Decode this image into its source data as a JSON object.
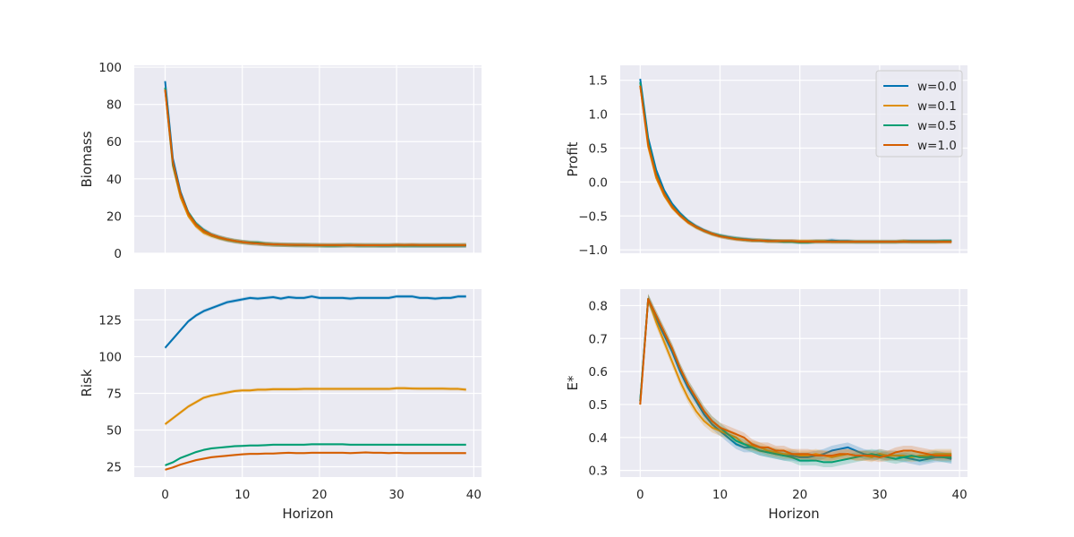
{
  "chart_data": [
    {
      "type": "line",
      "panel": "top-left",
      "xlabel": "",
      "ylabel": "Biomass",
      "xlim": [
        -4,
        41
      ],
      "ylim": [
        0,
        101
      ],
      "xticks": [
        0,
        10,
        20,
        30,
        40
      ],
      "yticks": [
        0,
        20,
        40,
        60,
        80,
        100
      ],
      "show_xtick_labels": false,
      "grid": true,
      "x": [
        0,
        1,
        2,
        3,
        4,
        5,
        6,
        7,
        8,
        9,
        10,
        11,
        12,
        13,
        14,
        15,
        16,
        17,
        18,
        19,
        20,
        21,
        22,
        23,
        24,
        25,
        26,
        27,
        28,
        29,
        30,
        31,
        32,
        33,
        34,
        35,
        36,
        37,
        38,
        39
      ],
      "series": [
        {
          "name": "w=0.0",
          "color": "#0173b2",
          "band": 1.2,
          "values": [
            92.5,
            51,
            33,
            22,
            16,
            12.5,
            10,
            8.5,
            7.3,
            6.5,
            6,
            5.5,
            5.2,
            4.9,
            4.7,
            4.6,
            4.5,
            4.4,
            4.4,
            4.3,
            4.3,
            4.2,
            4.2,
            4.2,
            4.3,
            4.2,
            4.2,
            4.2,
            4.1,
            4.1,
            4.2,
            4.2,
            4.1,
            4.1,
            4.1,
            4.1,
            4.1,
            4.1,
            4.1,
            4.1
          ]
        },
        {
          "name": "w=0.1",
          "color": "#de8f05",
          "band": 1.2,
          "values": [
            88,
            47,
            30,
            20,
            14.5,
            11,
            9.3,
            8.1,
            7.2,
            6.5,
            5.9,
            5.5,
            5.2,
            4.9,
            4.7,
            4.6,
            4.5,
            4.5,
            4.4,
            4.4,
            4.3,
            4.3,
            4.3,
            4.3,
            4.3,
            4.3,
            4.3,
            4.3,
            4.3,
            4.3,
            4.3,
            4.3,
            4.3,
            4.3,
            4.3,
            4.3,
            4.3,
            4.3,
            4.3,
            4.3
          ]
        },
        {
          "name": "w=0.5",
          "color": "#029e73",
          "band": 1.2,
          "values": [
            89,
            48,
            32,
            22,
            16,
            12.3,
            10,
            8.6,
            7.5,
            6.7,
            6.1,
            5.8,
            5.8,
            5.1,
            4.8,
            4.6,
            4.5,
            4.4,
            4.4,
            4.3,
            4.2,
            4.1,
            4.1,
            4.3,
            4.4,
            4.2,
            4.2,
            4.2,
            4.2,
            4.2,
            4.2,
            4.1,
            4.2,
            4.2,
            4.2,
            4.2,
            4.2,
            4.2,
            4.2,
            4.3
          ]
        },
        {
          "name": "w=1.0",
          "color": "#d55e00",
          "band": 1.2,
          "values": [
            88,
            49,
            32,
            21.5,
            15.5,
            12,
            10,
            8.6,
            7.5,
            6.7,
            6.1,
            5.6,
            5.3,
            5,
            4.8,
            4.7,
            4.6,
            4.5,
            4.5,
            4.4,
            4.4,
            4.4,
            4.4,
            4.4,
            4.4,
            4.4,
            4.3,
            4.3,
            4.3,
            4.3,
            4.5,
            4.4,
            4.5,
            4.4,
            4.4,
            4.4,
            4.4,
            4.4,
            4.4,
            4.4
          ]
        }
      ]
    },
    {
      "type": "line",
      "panel": "top-right",
      "xlabel": "",
      "ylabel": "Profit",
      "xlim": [
        -2.5,
        41
      ],
      "ylim": [
        -1.05,
        1.72
      ],
      "xticks": [
        0,
        10,
        20,
        30,
        40
      ],
      "yticks": [
        -1.0,
        -0.5,
        0.0,
        0.5,
        1.0,
        1.5
      ],
      "ytick_labels": [
        "−1.0",
        "−0.5",
        "0.0",
        "0.5",
        "1.0",
        "1.5"
      ],
      "show_xtick_labels": false,
      "grid": true,
      "legend": "top-right",
      "x": [
        0,
        1,
        2,
        3,
        4,
        5,
        6,
        7,
        8,
        9,
        10,
        11,
        12,
        13,
        14,
        15,
        16,
        17,
        18,
        19,
        20,
        21,
        22,
        23,
        24,
        25,
        26,
        27,
        28,
        29,
        30,
        31,
        32,
        33,
        34,
        35,
        36,
        37,
        38,
        39
      ],
      "series": [
        {
          "name": "w=0.0",
          "color": "#0173b2",
          "band": 0.03,
          "values": [
            1.52,
            0.65,
            0.18,
            -0.12,
            -0.32,
            -0.46,
            -0.57,
            -0.65,
            -0.71,
            -0.76,
            -0.79,
            -0.81,
            -0.83,
            -0.84,
            -0.85,
            -0.86,
            -0.86,
            -0.87,
            -0.87,
            -0.87,
            -0.88,
            -0.88,
            -0.87,
            -0.87,
            -0.86,
            -0.87,
            -0.87,
            -0.88,
            -0.88,
            -0.88,
            -0.88,
            -0.88,
            -0.88,
            -0.87,
            -0.87,
            -0.87,
            -0.87,
            -0.87,
            -0.87,
            -0.87
          ]
        },
        {
          "name": "w=0.1",
          "color": "#de8f05",
          "band": 0.03,
          "values": [
            1.42,
            0.52,
            0.06,
            -0.2,
            -0.38,
            -0.5,
            -0.6,
            -0.67,
            -0.72,
            -0.77,
            -0.8,
            -0.82,
            -0.84,
            -0.85,
            -0.86,
            -0.86,
            -0.87,
            -0.87,
            -0.87,
            -0.87,
            -0.87,
            -0.87,
            -0.87,
            -0.87,
            -0.88,
            -0.88,
            -0.88,
            -0.88,
            -0.88,
            -0.88,
            -0.88,
            -0.88,
            -0.88,
            -0.87,
            -0.88,
            -0.88,
            -0.88,
            -0.88,
            -0.88,
            -0.88
          ]
        },
        {
          "name": "w=0.5",
          "color": "#029e73",
          "band": 0.03,
          "values": [
            1.47,
            0.6,
            0.12,
            -0.16,
            -0.35,
            -0.48,
            -0.58,
            -0.66,
            -0.72,
            -0.76,
            -0.79,
            -0.82,
            -0.83,
            -0.85,
            -0.86,
            -0.86,
            -0.87,
            -0.87,
            -0.88,
            -0.88,
            -0.89,
            -0.89,
            -0.88,
            -0.88,
            -0.88,
            -0.88,
            -0.88,
            -0.88,
            -0.88,
            -0.88,
            -0.88,
            -0.88,
            -0.88,
            -0.88,
            -0.88,
            -0.88,
            -0.88,
            -0.88,
            -0.87,
            -0.87
          ]
        },
        {
          "name": "w=1.0",
          "color": "#d55e00",
          "band": 0.03,
          "values": [
            1.42,
            0.56,
            0.1,
            -0.17,
            -0.36,
            -0.49,
            -0.59,
            -0.66,
            -0.72,
            -0.76,
            -0.8,
            -0.82,
            -0.84,
            -0.85,
            -0.86,
            -0.86,
            -0.87,
            -0.87,
            -0.87,
            -0.87,
            -0.88,
            -0.88,
            -0.88,
            -0.88,
            -0.88,
            -0.88,
            -0.88,
            -0.88,
            -0.88,
            -0.88,
            -0.88,
            -0.88,
            -0.88,
            -0.88,
            -0.88,
            -0.88,
            -0.88,
            -0.88,
            -0.88,
            -0.88
          ]
        }
      ]
    },
    {
      "type": "line",
      "panel": "bottom-left",
      "xlabel": "Horizon",
      "ylabel": "Risk",
      "xlim": [
        -4,
        41
      ],
      "ylim": [
        18,
        146
      ],
      "xticks": [
        0,
        10,
        20,
        30,
        40
      ],
      "yticks": [
        25,
        50,
        75,
        100,
        125
      ],
      "show_xtick_labels": true,
      "grid": true,
      "x": [
        0,
        1,
        2,
        3,
        4,
        5,
        6,
        7,
        8,
        9,
        10,
        11,
        12,
        13,
        14,
        15,
        16,
        17,
        18,
        19,
        20,
        21,
        22,
        23,
        24,
        25,
        26,
        27,
        28,
        29,
        30,
        31,
        32,
        33,
        34,
        35,
        36,
        37,
        38,
        39
      ],
      "series": [
        {
          "name": "w=0.0",
          "color": "#0173b2",
          "band": 1.2,
          "values": [
            106,
            112,
            118,
            124,
            128,
            131,
            133,
            135,
            137,
            138,
            139,
            140,
            139.5,
            140,
            140.5,
            139.5,
            140.5,
            140,
            140,
            141,
            140,
            140,
            140,
            140,
            139.5,
            140,
            140,
            140,
            140,
            140,
            141,
            141,
            141,
            140,
            140,
            139.5,
            140,
            140,
            141,
            141
          ]
        },
        {
          "name": "w=0.1",
          "color": "#de8f05",
          "band": 1.2,
          "values": [
            54,
            58,
            62,
            66,
            69,
            72,
            73.5,
            74.5,
            75.5,
            76.5,
            77,
            77,
            77.5,
            77.5,
            77.8,
            77.8,
            77.8,
            77.8,
            78,
            78,
            78,
            78,
            78,
            78,
            78,
            78,
            78,
            78,
            78,
            78,
            78.5,
            78.5,
            78.3,
            78.2,
            78.2,
            78.2,
            78.2,
            78,
            78,
            77.5
          ]
        },
        {
          "name": "w=0.5",
          "color": "#029e73",
          "band": 0.8,
          "values": [
            26,
            28,
            31,
            33,
            35,
            36.5,
            37.5,
            38,
            38.5,
            39,
            39.2,
            39.5,
            39.5,
            39.7,
            40,
            40,
            40,
            40,
            40,
            40.3,
            40.3,
            40.3,
            40.3,
            40.3,
            40,
            40,
            40,
            40,
            40,
            40,
            40,
            40,
            40,
            40,
            40,
            40,
            40,
            40,
            40,
            40
          ]
        },
        {
          "name": "w=1.0",
          "color": "#d55e00",
          "band": 0.8,
          "values": [
            23,
            24.5,
            26.5,
            28,
            29.5,
            30.5,
            31.5,
            32,
            32.5,
            33,
            33.5,
            33.8,
            33.8,
            34,
            34,
            34.3,
            34.5,
            34.3,
            34.3,
            34.5,
            34.5,
            34.5,
            34.5,
            34.5,
            34.3,
            34.5,
            34.8,
            34.5,
            34.5,
            34.3,
            34.5,
            34.3,
            34.3,
            34.3,
            34.3,
            34.3,
            34.3,
            34.3,
            34.3,
            34.3
          ]
        }
      ]
    },
    {
      "type": "line",
      "panel": "bottom-right",
      "xlabel": "Horizon",
      "ylabel": "E*",
      "xlim": [
        -2.5,
        41
      ],
      "ylim": [
        0.28,
        0.85
      ],
      "xticks": [
        0,
        10,
        20,
        30,
        40
      ],
      "yticks": [
        0.3,
        0.4,
        0.5,
        0.6,
        0.7,
        0.8
      ],
      "show_xtick_labels": true,
      "grid": true,
      "x": [
        0,
        1,
        2,
        3,
        4,
        5,
        6,
        7,
        8,
        9,
        10,
        11,
        12,
        13,
        14,
        15,
        16,
        17,
        18,
        19,
        20,
        21,
        22,
        23,
        24,
        25,
        26,
        27,
        28,
        29,
        30,
        31,
        32,
        33,
        34,
        35,
        36,
        37,
        38,
        39
      ],
      "series": [
        {
          "name": "w=0.0",
          "color": "#0173b2",
          "band": 0.015,
          "values": [
            0.51,
            0.82,
            0.76,
            0.71,
            0.66,
            0.6,
            0.55,
            0.51,
            0.47,
            0.44,
            0.42,
            0.4,
            0.38,
            0.37,
            0.37,
            0.36,
            0.355,
            0.35,
            0.345,
            0.345,
            0.34,
            0.34,
            0.345,
            0.35,
            0.36,
            0.365,
            0.37,
            0.36,
            0.35,
            0.345,
            0.35,
            0.345,
            0.345,
            0.34,
            0.335,
            0.33,
            0.335,
            0.34,
            0.34,
            0.335
          ]
        },
        {
          "name": "w=0.1",
          "color": "#de8f05",
          "band": 0.015,
          "values": [
            0.5,
            0.82,
            0.75,
            0.69,
            0.63,
            0.57,
            0.52,
            0.48,
            0.45,
            0.43,
            0.42,
            0.41,
            0.4,
            0.38,
            0.375,
            0.37,
            0.36,
            0.355,
            0.35,
            0.35,
            0.345,
            0.345,
            0.35,
            0.345,
            0.34,
            0.345,
            0.35,
            0.345,
            0.345,
            0.34,
            0.35,
            0.345,
            0.345,
            0.345,
            0.34,
            0.345,
            0.345,
            0.35,
            0.35,
            0.35
          ]
        },
        {
          "name": "w=0.5",
          "color": "#029e73",
          "band": 0.015,
          "values": [
            0.51,
            0.82,
            0.77,
            0.72,
            0.67,
            0.61,
            0.56,
            0.52,
            0.48,
            0.45,
            0.43,
            0.41,
            0.39,
            0.38,
            0.37,
            0.36,
            0.355,
            0.35,
            0.345,
            0.34,
            0.33,
            0.33,
            0.33,
            0.325,
            0.325,
            0.33,
            0.335,
            0.34,
            0.345,
            0.35,
            0.345,
            0.34,
            0.335,
            0.34,
            0.345,
            0.34,
            0.34,
            0.345,
            0.34,
            0.34
          ]
        },
        {
          "name": "w=1.0",
          "color": "#d55e00",
          "band": 0.015,
          "values": [
            0.5,
            0.82,
            0.77,
            0.72,
            0.67,
            0.61,
            0.56,
            0.52,
            0.48,
            0.45,
            0.43,
            0.42,
            0.41,
            0.4,
            0.38,
            0.37,
            0.37,
            0.36,
            0.36,
            0.35,
            0.35,
            0.35,
            0.345,
            0.345,
            0.345,
            0.35,
            0.35,
            0.345,
            0.345,
            0.345,
            0.34,
            0.345,
            0.355,
            0.36,
            0.36,
            0.355,
            0.35,
            0.345,
            0.345,
            0.345
          ]
        }
      ]
    }
  ]
}
